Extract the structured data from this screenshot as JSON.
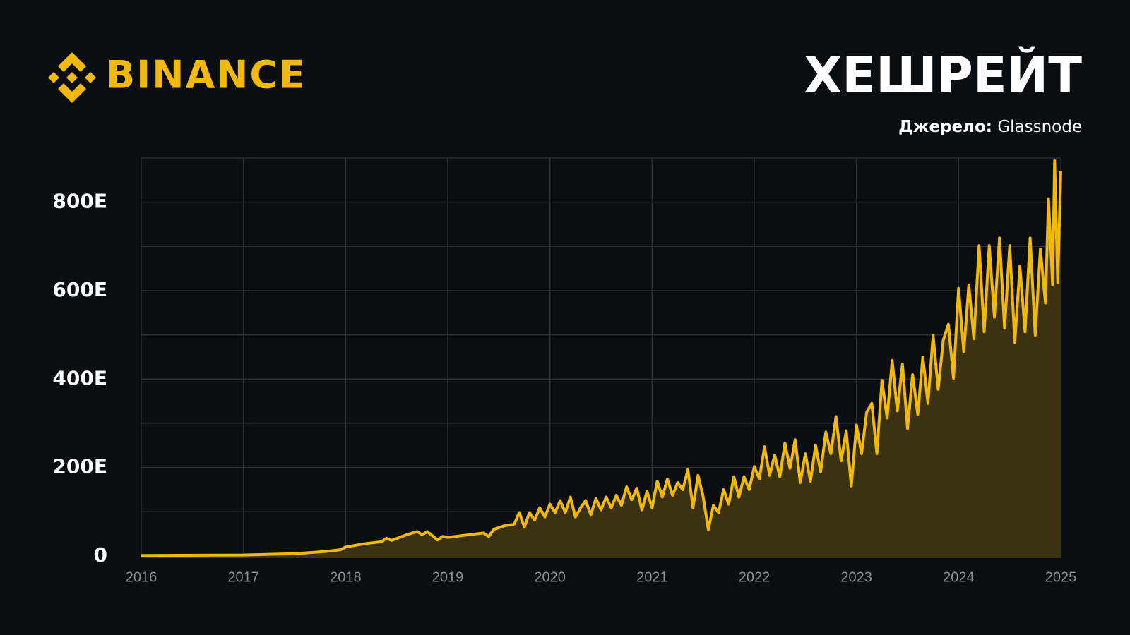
{
  "chart_data": {
    "type": "area",
    "brand": "BINANCE",
    "title": "ХЕШРЕЙТ",
    "source_label": "Джерело:",
    "source": "Glassnode",
    "color": "#f0b90b",
    "fill_color": "#3b3212",
    "grid": true,
    "xlim": [
      2016,
      2025
    ],
    "xticks": [
      2016,
      2017,
      2018,
      2019,
      2020,
      2021,
      2022,
      2023,
      2024,
      2025
    ],
    "ylim": [
      -5,
      900
    ],
    "yticks": [
      0,
      {
        "value": 200,
        "label": "200E"
      },
      {
        "value": 400,
        "label": "400E"
      },
      {
        "value": 600,
        "label": "600E"
      },
      {
        "value": 800,
        "label": "800E"
      }
    ],
    "minor_yticks": [
      100,
      300,
      500,
      700,
      900
    ],
    "x": [
      2016.0,
      2017.0,
      2017.5,
      2017.8,
      2017.95,
      2018.0,
      2018.2,
      2018.35,
      2018.4,
      2018.45,
      2018.6,
      2018.7,
      2018.75,
      2018.8,
      2018.9,
      2018.95,
      2019.0,
      2019.35,
      2019.4,
      2019.45,
      2019.55,
      2019.65,
      2019.7,
      2019.75,
      2019.8,
      2019.85,
      2019.9,
      2019.95,
      2020.0,
      2020.05,
      2020.1,
      2020.15,
      2020.2,
      2020.25,
      2020.3,
      2020.35,
      2020.4,
      2020.45,
      2020.5,
      2020.55,
      2020.6,
      2020.65,
      2020.7,
      2020.75,
      2020.8,
      2020.85,
      2020.9,
      2020.95,
      2021.0,
      2021.05,
      2021.1,
      2021.15,
      2021.2,
      2021.25,
      2021.3,
      2021.35,
      2021.4,
      2021.45,
      2021.5,
      2021.55,
      2021.6,
      2021.65,
      2021.7,
      2021.75,
      2021.8,
      2021.85,
      2021.9,
      2021.95,
      2022.0,
      2022.05,
      2022.1,
      2022.15,
      2022.2,
      2022.25,
      2022.3,
      2022.35,
      2022.4,
      2022.45,
      2022.5,
      2022.55,
      2022.6,
      2022.65,
      2022.7,
      2022.75,
      2022.8,
      2022.85,
      2022.9,
      2022.95,
      2023.0,
      2023.05,
      2023.1,
      2023.15,
      2023.2,
      2023.25,
      2023.3,
      2023.35,
      2023.4,
      2023.45,
      2023.5,
      2023.55,
      2023.6,
      2023.65,
      2023.7,
      2023.75,
      2023.8,
      2023.85,
      2023.9,
      2023.95,
      2024.0,
      2024.05,
      2024.1,
      2024.15,
      2024.2,
      2024.25,
      2024.3,
      2024.35,
      2024.4,
      2024.45,
      2024.5,
      2024.55,
      2024.6,
      2024.65,
      2024.7,
      2024.75,
      2024.8,
      2024.85,
      2024.88,
      2024.92,
      2024.94,
      2024.97,
      2025.0
    ],
    "values": [
      1,
      2,
      5,
      10,
      14,
      20,
      28,
      32,
      40,
      35,
      48,
      55,
      48,
      55,
      36,
      44,
      42,
      52,
      44,
      60,
      68,
      72,
      98,
      65,
      98,
      81,
      109,
      88,
      117,
      98,
      125,
      98,
      133,
      88,
      109,
      125,
      93,
      130,
      104,
      133,
      109,
      137,
      114,
      156,
      127,
      153,
      104,
      146,
      109,
      169,
      133,
      174,
      137,
      166,
      150,
      195,
      109,
      182,
      133,
      60,
      114,
      98,
      150,
      117,
      179,
      133,
      179,
      150,
      202,
      174,
      247,
      182,
      228,
      179,
      255,
      198,
      263,
      166,
      231,
      169,
      250,
      190,
      280,
      231,
      315,
      215,
      283,
      158,
      296,
      231,
      325,
      345,
      231,
      397,
      312,
      442,
      328,
      434,
      288,
      410,
      320,
      450,
      345,
      499,
      377,
      488,
      524,
      402,
      605,
      462,
      613,
      491,
      702,
      507,
      702,
      540,
      719,
      515,
      702,
      483,
      655,
      507,
      719,
      499,
      694,
      572,
      808,
      613,
      894,
      618,
      870
    ]
  }
}
